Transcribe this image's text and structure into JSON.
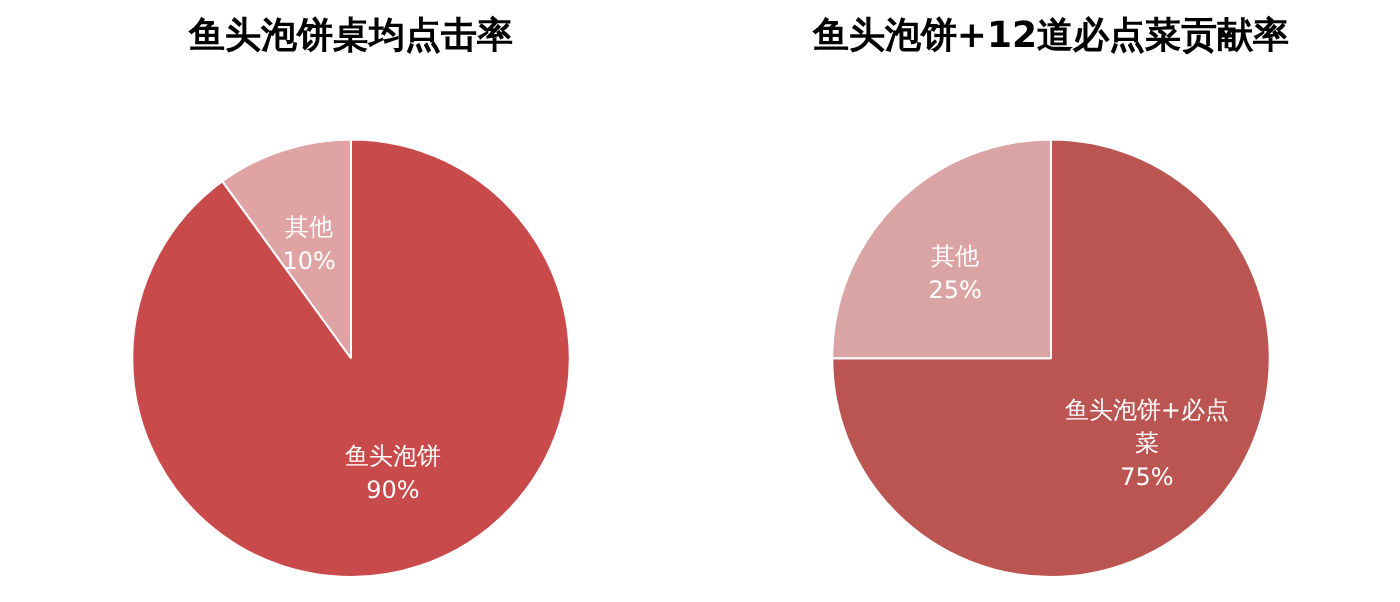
{
  "chart_data": [
    {
      "type": "pie",
      "title": "鱼头泡饼桌均点击率",
      "categories": [
        "鱼头泡饼",
        "其他"
      ],
      "values": [
        90,
        10
      ],
      "value_labels": [
        "90%",
        "10%"
      ],
      "colors": [
        "#c94a4a",
        "#dfa3a3"
      ]
    },
    {
      "type": "pie",
      "title": "鱼头泡饼+12道必点菜贡献率",
      "categories": [
        "鱼头泡饼+必点菜",
        "其他"
      ],
      "values": [
        75,
        25
      ],
      "value_labels": [
        "75%",
        "25%"
      ],
      "colors": [
        "#bb5552",
        "#dba4a4"
      ]
    }
  ]
}
